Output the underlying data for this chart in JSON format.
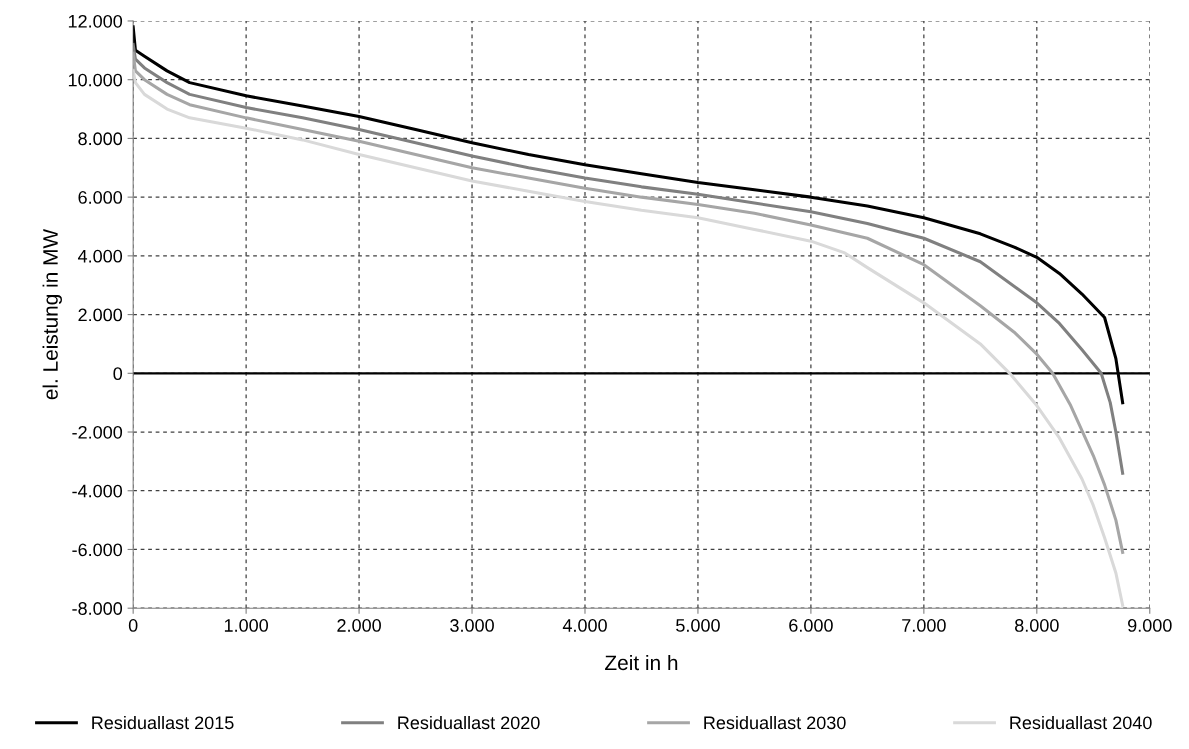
{
  "chart_data": {
    "type": "line",
    "xlabel": "Zeit in h",
    "ylabel": "el. Leistung in MW",
    "xlim": [
      0,
      9000
    ],
    "ylim": [
      -8000,
      12000
    ],
    "xticks": [
      0,
      {
        "value": 1000,
        "label": "1.000"
      },
      {
        "value": 2000,
        "label": "2.000"
      },
      {
        "value": 3000,
        "label": "3.000"
      },
      {
        "value": 4000,
        "label": "4.000"
      },
      {
        "value": 5000,
        "label": "5.000"
      },
      {
        "value": 6000,
        "label": "6.000"
      },
      {
        "value": 7000,
        "label": "7.000"
      },
      {
        "value": 8000,
        "label": "8.000"
      },
      {
        "value": 9000,
        "label": "9.000"
      }
    ],
    "yticks": [
      {
        "value": -8000,
        "label": "-8.000"
      },
      {
        "value": -6000,
        "label": "-6.000"
      },
      {
        "value": -4000,
        "label": "-4.000"
      },
      {
        "value": -2000,
        "label": "-2.000"
      },
      0,
      {
        "value": 2000,
        "label": "2.000"
      },
      {
        "value": 4000,
        "label": "4.000"
      },
      {
        "value": 6000,
        "label": "6.000"
      },
      {
        "value": 8000,
        "label": "8.000"
      },
      {
        "value": 10000,
        "label": "10.000"
      },
      {
        "value": 12000,
        "label": "12.000"
      }
    ],
    "grid": true,
    "legend": "bottom",
    "marker": "none",
    "line_style": "solid",
    "ref_lines": [
      {
        "axis": "y",
        "value": 0,
        "color": "#000000"
      }
    ],
    "series": [
      {
        "name": "Residuallast 2015",
        "color": "#000000",
        "x": [
          0,
          20,
          100,
          300,
          500,
          1000,
          1500,
          2000,
          2500,
          3000,
          3500,
          4000,
          4500,
          5000,
          5500,
          6000,
          6500,
          7000,
          7500,
          7800,
          8000,
          8200,
          8400,
          8500,
          8600,
          8700,
          8760
        ],
        "values": [
          11800,
          11000,
          10800,
          10300,
          9900,
          9450,
          9100,
          8750,
          8300,
          7850,
          7450,
          7100,
          6800,
          6500,
          6250,
          6000,
          5700,
          5300,
          4750,
          4300,
          3950,
          3400,
          2700,
          2300,
          1900,
          500,
          -1000
        ]
      },
      {
        "name": "Residuallast 2020",
        "color": "#808080",
        "x": [
          0,
          20,
          100,
          300,
          500,
          1000,
          1500,
          2000,
          2500,
          3000,
          3500,
          4000,
          4500,
          5000,
          5500,
          6000,
          6500,
          7000,
          7500,
          8000,
          8200,
          8400,
          8570,
          8650,
          8700,
          8760
        ],
        "values": [
          11200,
          10700,
          10400,
          9900,
          9500,
          9050,
          8700,
          8300,
          7850,
          7400,
          7000,
          6650,
          6350,
          6100,
          5800,
          5500,
          5100,
          4600,
          3800,
          2400,
          1700,
          800,
          0,
          -1000,
          -2000,
          -3400
        ]
      },
      {
        "name": "Residuallast 2030",
        "color": "#a6a6a6",
        "x": [
          0,
          20,
          100,
          300,
          500,
          1000,
          1500,
          2000,
          2500,
          3000,
          3500,
          4000,
          4500,
          5000,
          5500,
          6000,
          6500,
          7000,
          7500,
          7800,
          8000,
          8140,
          8300,
          8500,
          8600,
          8700,
          8760
        ],
        "values": [
          10900,
          10300,
          10000,
          9500,
          9150,
          8700,
          8300,
          7900,
          7450,
          7000,
          6650,
          6300,
          6000,
          5750,
          5450,
          5050,
          4600,
          3700,
          2300,
          1400,
          650,
          0,
          -1100,
          -2800,
          -3800,
          -5000,
          -6100
        ]
      },
      {
        "name": "Residuallast 2040",
        "color": "#d9d9d9",
        "x": [
          0,
          20,
          100,
          300,
          500,
          1000,
          1500,
          2000,
          2500,
          3000,
          3500,
          4000,
          4500,
          5000,
          5500,
          6000,
          6300,
          6500,
          7000,
          7500,
          7760,
          8000,
          8200,
          8400,
          8500,
          8600,
          8700,
          8760
        ],
        "values": [
          10300,
          9900,
          9500,
          9000,
          8700,
          8350,
          7950,
          7450,
          7000,
          6550,
          6200,
          5850,
          5550,
          5300,
          4900,
          4500,
          4100,
          3600,
          2400,
          1000,
          0,
          -1100,
          -2200,
          -3600,
          -4500,
          -5600,
          -6800,
          -7900
        ]
      }
    ]
  }
}
